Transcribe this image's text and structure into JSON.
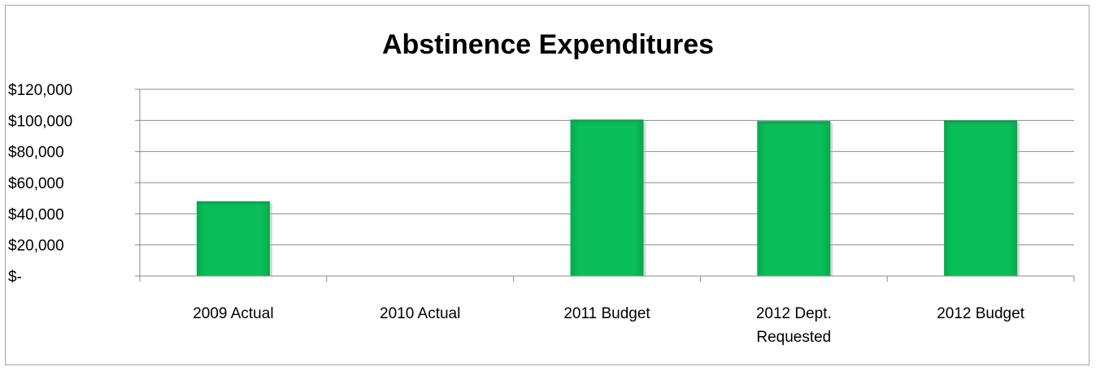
{
  "chart_data": {
    "type": "bar",
    "title": "Abstinence Expenditures",
    "categories": [
      [
        "2009 Actual"
      ],
      [
        "2010 Actual"
      ],
      [
        "2011 Budget"
      ],
      [
        "2012 Dept.",
        "Requested"
      ],
      [
        "2012 Budget"
      ]
    ],
    "values": [
      48000,
      0,
      100500,
      99500,
      100000
    ],
    "ylim": [
      0,
      120000
    ],
    "y_ticks": [
      {
        "value": 0,
        "label": "$-"
      },
      {
        "value": 20000,
        "label": "$20,000"
      },
      {
        "value": 40000,
        "label": "$40,000"
      },
      {
        "value": 60000,
        "label": "$60,000"
      },
      {
        "value": 80000,
        "label": "$80,000"
      },
      {
        "value": 100000,
        "label": "$100,000"
      },
      {
        "value": 120000,
        "label": "$120,000"
      }
    ],
    "grid": true,
    "legend": "none",
    "bar_color": "#0abf5a"
  }
}
